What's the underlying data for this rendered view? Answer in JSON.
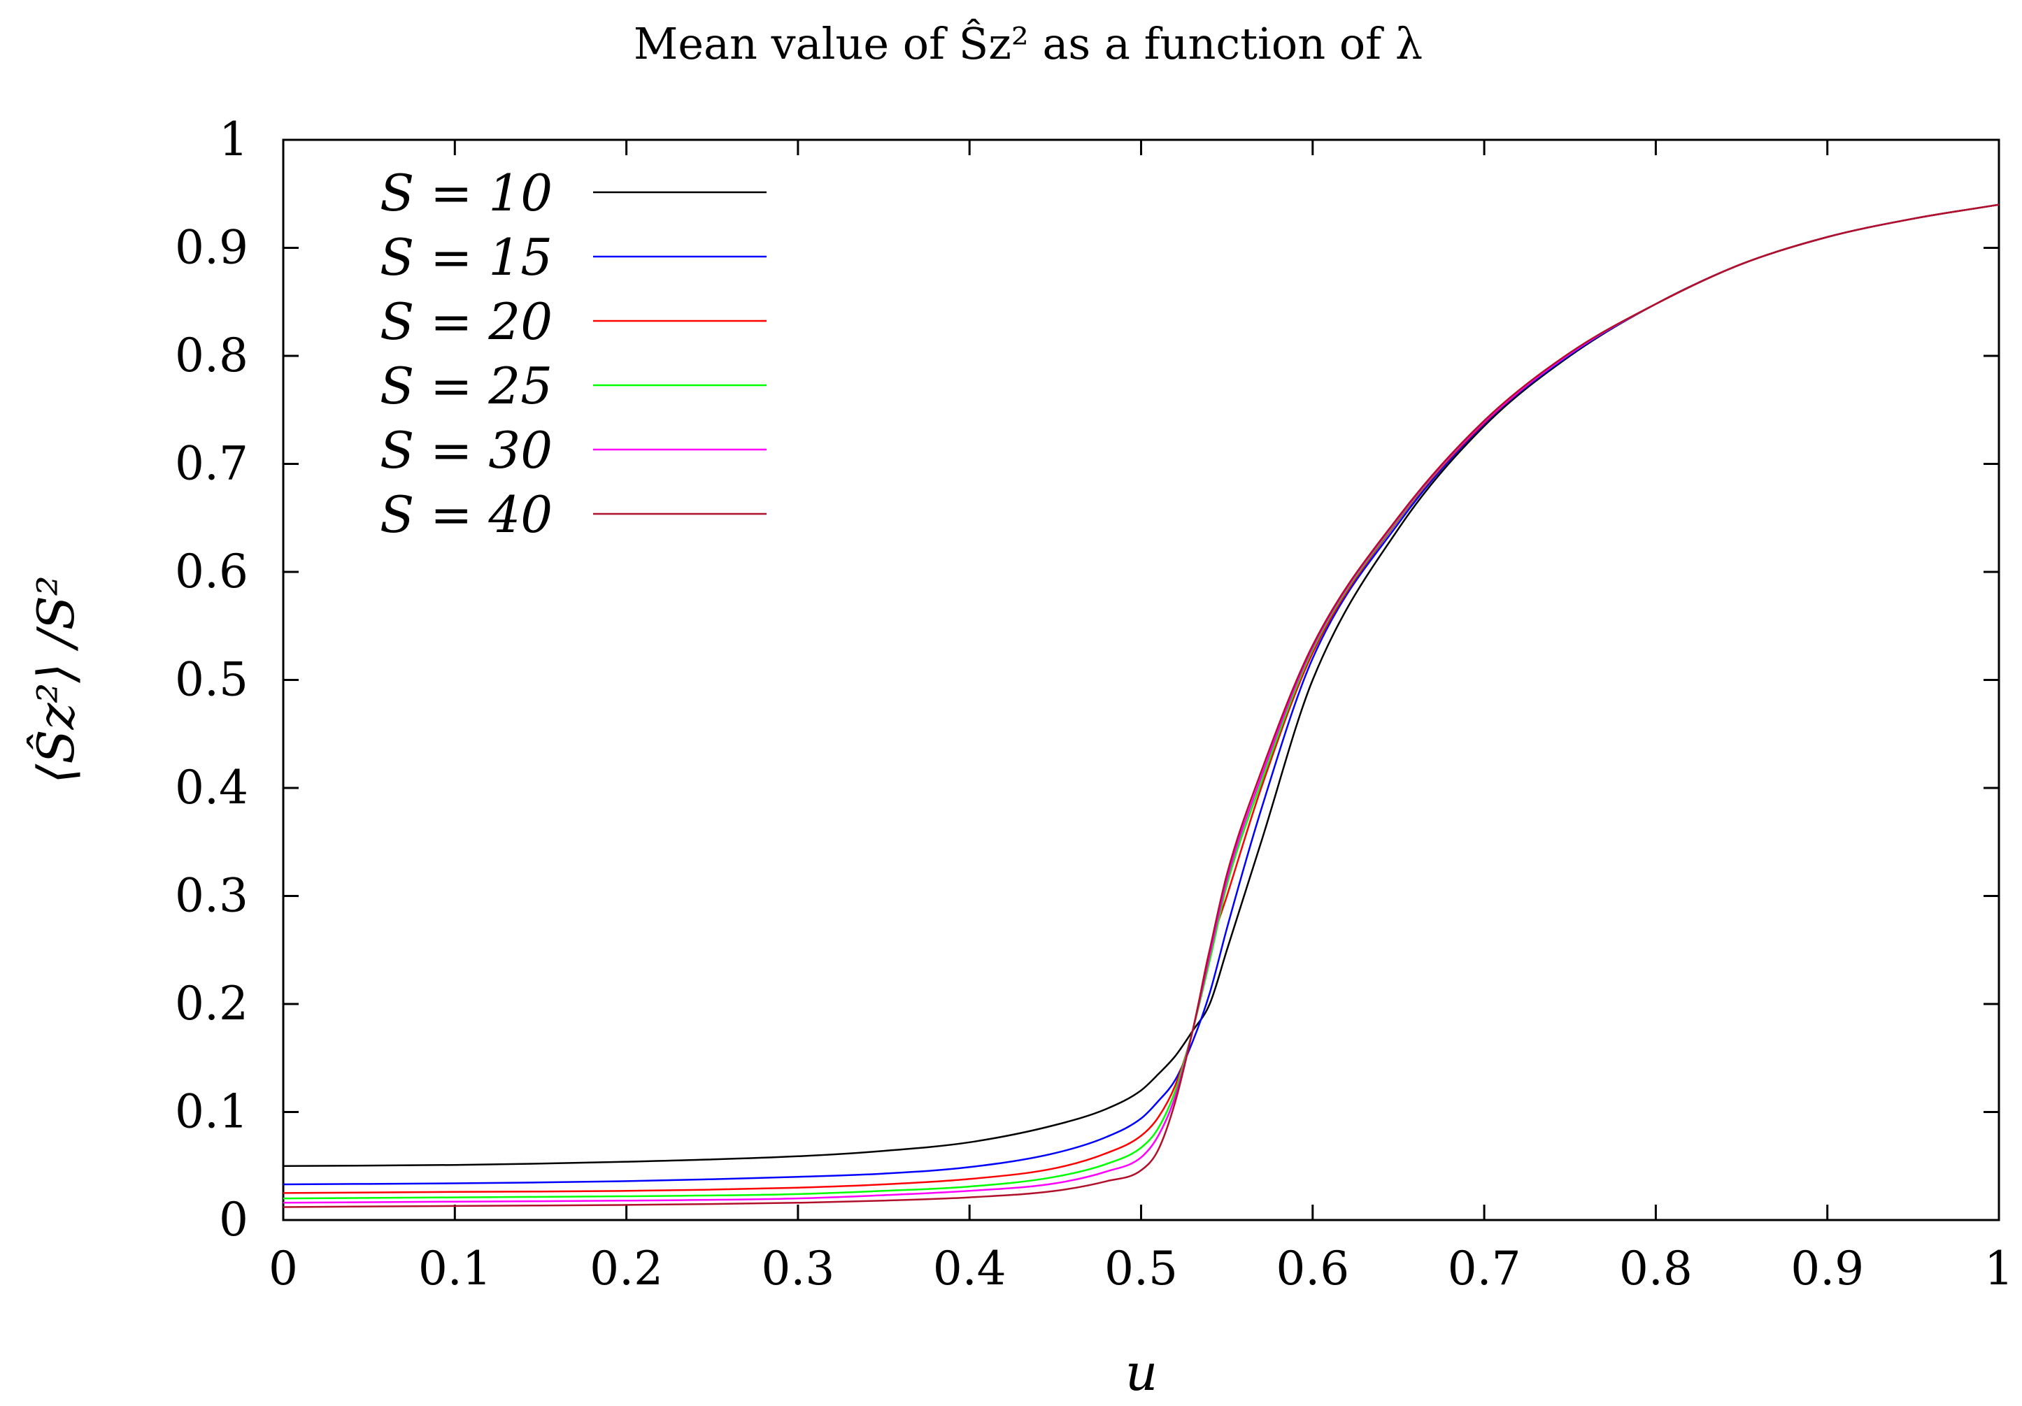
{
  "chart_data": {
    "type": "line",
    "title": "Mean value of Ŝz² as a function of λ",
    "xlabel": "u",
    "ylabel": "⟨Ŝz²⟩ /S²",
    "xlim": [
      0,
      1
    ],
    "ylim": [
      0,
      1
    ],
    "x_ticks": [
      "0",
      "0.1",
      "0.2",
      "0.3",
      "0.4",
      "0.5",
      "0.6",
      "0.7",
      "0.8",
      "0.9",
      "1"
    ],
    "y_ticks": [
      "0",
      "0.1",
      "0.2",
      "0.3",
      "0.4",
      "0.5",
      "0.6",
      "0.7",
      "0.8",
      "0.9",
      "1"
    ],
    "legend_position": "top-left",
    "grid": false,
    "x": [
      0,
      0.1,
      0.2,
      0.3,
      0.35,
      0.4,
      0.45,
      0.48,
      0.5,
      0.51,
      0.52,
      0.53,
      0.54,
      0.55,
      0.57,
      0.6,
      0.65,
      0.7,
      0.75,
      0.8,
      0.85,
      0.9,
      0.95,
      1.0
    ],
    "series": [
      {
        "name": "S = 10",
        "color": "#000000",
        "values": [
          0.05,
          0.051,
          0.054,
          0.059,
          0.064,
          0.072,
          0.088,
          0.103,
          0.12,
          0.135,
          0.152,
          0.175,
          0.2,
          0.25,
          0.35,
          0.5,
          0.64,
          0.735,
          0.8,
          0.848,
          0.885,
          0.91,
          0.927,
          0.94
        ]
      },
      {
        "name": "S = 15",
        "color": "#0000ff",
        "values": [
          0.033,
          0.034,
          0.036,
          0.04,
          0.043,
          0.049,
          0.062,
          0.077,
          0.094,
          0.11,
          0.13,
          0.165,
          0.21,
          0.27,
          0.38,
          0.52,
          0.645,
          0.737,
          0.801,
          0.848,
          0.885,
          0.91,
          0.927,
          0.94
        ]
      },
      {
        "name": "S = 20",
        "color": "#ff0000",
        "values": [
          0.025,
          0.026,
          0.027,
          0.03,
          0.033,
          0.038,
          0.048,
          0.062,
          0.078,
          0.095,
          0.125,
          0.175,
          0.25,
          0.3,
          0.4,
          0.525,
          0.648,
          0.738,
          0.802,
          0.848,
          0.885,
          0.91,
          0.927,
          0.94
        ]
      },
      {
        "name": "S = 25",
        "color": "#00ff00",
        "values": [
          0.02,
          0.021,
          0.022,
          0.024,
          0.027,
          0.031,
          0.04,
          0.052,
          0.067,
          0.085,
          0.12,
          0.175,
          0.24,
          0.31,
          0.405,
          0.528,
          0.649,
          0.739,
          0.802,
          0.848,
          0.885,
          0.91,
          0.927,
          0.94
        ]
      },
      {
        "name": "S = 30",
        "color": "#ff00ff",
        "values": [
          0.016,
          0.017,
          0.018,
          0.02,
          0.023,
          0.027,
          0.034,
          0.045,
          0.058,
          0.078,
          0.115,
          0.175,
          0.245,
          0.315,
          0.41,
          0.53,
          0.65,
          0.739,
          0.802,
          0.848,
          0.885,
          0.91,
          0.927,
          0.94
        ]
      },
      {
        "name": "S = 40",
        "color": "#b0102a",
        "values": [
          0.012,
          0.013,
          0.014,
          0.016,
          0.018,
          0.021,
          0.027,
          0.036,
          0.046,
          0.065,
          0.11,
          0.175,
          0.25,
          0.32,
          0.415,
          0.532,
          0.651,
          0.74,
          0.803,
          0.848,
          0.885,
          0.91,
          0.927,
          0.94
        ]
      }
    ]
  }
}
